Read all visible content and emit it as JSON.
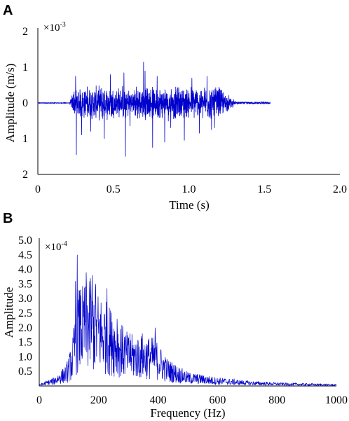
{
  "chart_data": [
    {
      "panel": "A",
      "type": "line",
      "multiplier_base": "×10",
      "multiplier_exp": "-3",
      "xlabel": "Time (s)",
      "ylabel": "Amplitude (m/s)",
      "xlim": [
        0,
        2.0
      ],
      "ylim": [
        -2,
        2
      ],
      "x_ticks": [
        0,
        0.5,
        1.0,
        1.5,
        2.0
      ],
      "x_tick_labels": [
        "0",
        "0.5",
        "1.0",
        "1.5",
        "2.0"
      ],
      "y_ticks": [
        2,
        1,
        0,
        -1,
        -2
      ],
      "y_tick_labels": [
        "2",
        "1",
        "0",
        "1",
        "2"
      ],
      "color": "#0000cc",
      "signal": {
        "start": 0.0,
        "end": 1.54,
        "burst_start": 0.21,
        "burst_end": 1.32,
        "typical_amplitude": 0.35,
        "spikes": [
          {
            "x": 0.25,
            "y": 0.75
          },
          {
            "x": 0.255,
            "y": -1.45
          },
          {
            "x": 0.29,
            "y": -0.9
          },
          {
            "x": 0.35,
            "y": -0.8
          },
          {
            "x": 0.44,
            "y": -1.0
          },
          {
            "x": 0.48,
            "y": 0.8
          },
          {
            "x": 0.57,
            "y": 0.85
          },
          {
            "x": 0.58,
            "y": -1.5
          },
          {
            "x": 0.61,
            "y": -0.65
          },
          {
            "x": 0.7,
            "y": 1.15
          },
          {
            "x": 0.71,
            "y": 0.9
          },
          {
            "x": 0.76,
            "y": -1.25
          },
          {
            "x": 0.79,
            "y": 0.75
          },
          {
            "x": 0.84,
            "y": -1.1
          },
          {
            "x": 0.88,
            "y": -0.7
          },
          {
            "x": 0.97,
            "y": -1.05
          },
          {
            "x": 1.02,
            "y": 0.7
          },
          {
            "x": 1.07,
            "y": -0.85
          },
          {
            "x": 1.12,
            "y": 0.75
          },
          {
            "x": 1.15,
            "y": -0.75
          },
          {
            "x": 1.17,
            "y": -0.7
          },
          {
            "x": 1.2,
            "y": 0.45
          }
        ]
      }
    },
    {
      "panel": "B",
      "type": "line",
      "multiplier_base": "×10",
      "multiplier_exp": "-4",
      "xlabel": "Frequency (Hz)",
      "ylabel": "Amplitude",
      "xlim": [
        0,
        1000
      ],
      "ylim": [
        0,
        5.0
      ],
      "x_ticks": [
        0,
        200,
        400,
        600,
        800,
        1000
      ],
      "x_tick_labels": [
        "0",
        "200",
        "400",
        "600",
        "800",
        "1000"
      ],
      "y_ticks": [
        5.0,
        4.5,
        4.0,
        3.5,
        3.0,
        2.5,
        2.0,
        1.5,
        1.0,
        0.5
      ],
      "y_tick_labels": [
        "5.0",
        "4.5",
        "4.0",
        "3.5",
        "3.0",
        "2.5",
        "2.0",
        "1.5",
        "1.0",
        "0.5"
      ],
      "color": "#0000cc",
      "envelope": [
        {
          "x": 0,
          "y": 0.05
        },
        {
          "x": 50,
          "y": 0.25
        },
        {
          "x": 90,
          "y": 0.6
        },
        {
          "x": 110,
          "y": 1.2
        },
        {
          "x": 130,
          "y": 2.8
        },
        {
          "x": 170,
          "y": 3.0
        },
        {
          "x": 230,
          "y": 2.4
        },
        {
          "x": 300,
          "y": 1.5
        },
        {
          "x": 390,
          "y": 1.4
        },
        {
          "x": 430,
          "y": 0.8
        },
        {
          "x": 500,
          "y": 0.4
        },
        {
          "x": 600,
          "y": 0.25
        },
        {
          "x": 700,
          "y": 0.15
        },
        {
          "x": 800,
          "y": 0.1
        },
        {
          "x": 1000,
          "y": 0.05
        }
      ],
      "peaks": [
        {
          "x": 122,
          "y": 3.6
        },
        {
          "x": 128,
          "y": 4.5
        },
        {
          "x": 138,
          "y": 3.3
        },
        {
          "x": 158,
          "y": 3.9
        },
        {
          "x": 172,
          "y": 3.7
        },
        {
          "x": 178,
          "y": 3.8
        },
        {
          "x": 190,
          "y": 3.5
        },
        {
          "x": 228,
          "y": 3.35
        },
        {
          "x": 245,
          "y": 2.2
        },
        {
          "x": 262,
          "y": 2.3
        },
        {
          "x": 305,
          "y": 1.8
        },
        {
          "x": 347,
          "y": 1.8
        },
        {
          "x": 390,
          "y": 2.0
        },
        {
          "x": 425,
          "y": 0.8
        }
      ]
    }
  ],
  "panels": {
    "a_letter": "A",
    "b_letter": "B"
  }
}
